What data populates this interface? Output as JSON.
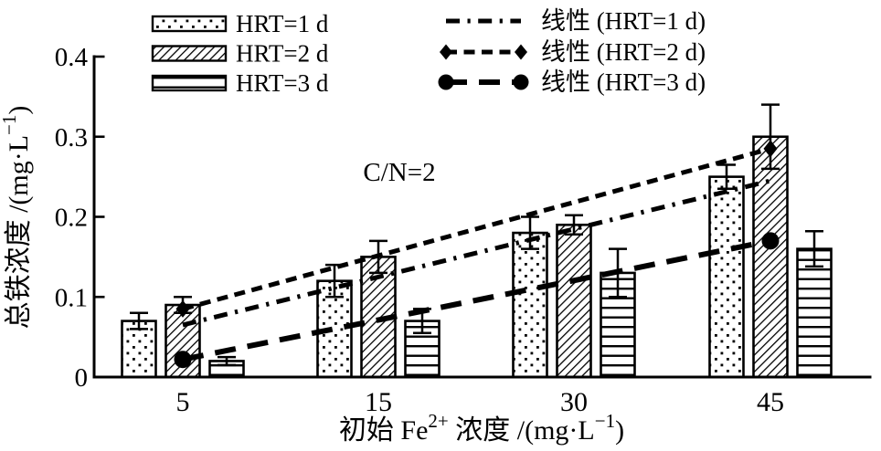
{
  "page": {
    "background": "#ffffff",
    "foreground": "#000000"
  },
  "chart_data": {
    "type": "bar",
    "title": "",
    "annotation": "C/N=2",
    "categories": [
      "5",
      "15",
      "30",
      "45"
    ],
    "xlabel": "初始 Fe²⁺ 浓度 /(mg·L⁻¹)",
    "ylabel": "总铁浓度 /(mg·L⁻¹)",
    "xlabel_parts": [
      {
        "text": "初始 Fe"
      },
      {
        "text": "2+",
        "sup": true
      },
      {
        "text": " 浓度 /(mg·L"
      },
      {
        "text": "−1",
        "sup": true
      },
      {
        "text": ")"
      }
    ],
    "ylabel_parts": [
      {
        "text": "总铁浓度 /(mg·L"
      },
      {
        "text": "−1",
        "sup": true
      },
      {
        "text": ")"
      }
    ],
    "ylim": [
      0,
      0.4
    ],
    "yticks": [
      0,
      0.1,
      0.2,
      0.3,
      0.4
    ],
    "ytick_labels": [
      "0",
      "0.1",
      "0.2",
      "0.3",
      "0.4"
    ],
    "grid": false,
    "legend_position": "top",
    "series": [
      {
        "name": "HRT=1 d",
        "pattern": "dots",
        "values": [
          0.07,
          0.12,
          0.18,
          0.25
        ],
        "errors": [
          0.01,
          0.02,
          0.02,
          0.015
        ]
      },
      {
        "name": "HRT=2 d",
        "pattern": "diagonal-hatch",
        "values": [
          0.09,
          0.15,
          0.19,
          0.3
        ],
        "errors": [
          0.01,
          0.02,
          0.012,
          0.04
        ]
      },
      {
        "name": "HRT=3 d",
        "pattern": "horizontal-lines",
        "values": [
          0.02,
          0.07,
          0.13,
          0.16
        ],
        "errors": [
          0.005,
          0.015,
          0.03,
          0.022
        ]
      }
    ],
    "trend_lines": [
      {
        "name": "线性 (HRT=1 d)",
        "style": "dash-dot",
        "marker": "none",
        "endpoints": [
          0.065,
          0.245
        ]
      },
      {
        "name": "线性 (HRT=2 d)",
        "style": "dashed",
        "marker": "diamond",
        "endpoints": [
          0.085,
          0.285
        ]
      },
      {
        "name": "线性 (HRT=3 d)",
        "style": "long-dash",
        "marker": "circle",
        "endpoints": [
          0.022,
          0.17
        ]
      }
    ]
  }
}
